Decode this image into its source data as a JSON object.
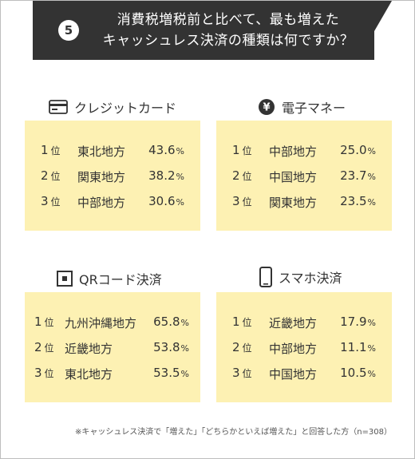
{
  "header": {
    "question_number": "5",
    "title_line1": "消費税増税前と比べて、最も増えた",
    "title_line2": "キャッシュレス決済の種類は何ですか？"
  },
  "rank_unit": "位",
  "pct_unit": "%",
  "sections": {
    "credit": {
      "title": "クレジットカード",
      "icon": "credit-card-icon",
      "rows": [
        {
          "rank": "1",
          "region": "東北地方",
          "value": "43.6"
        },
        {
          "rank": "2",
          "region": "関東地方",
          "value": "38.2"
        },
        {
          "rank": "3",
          "region": "中部地方",
          "value": "30.6"
        }
      ]
    },
    "emoney": {
      "title": "電子マネー",
      "icon": "yen-coin-icon",
      "icon_glyph": "¥",
      "rows": [
        {
          "rank": "1",
          "region": "中部地方",
          "value": "25.0"
        },
        {
          "rank": "2",
          "region": "中国地方",
          "value": "23.7"
        },
        {
          "rank": "3",
          "region": "関東地方",
          "value": "23.5"
        }
      ]
    },
    "qr": {
      "title": "QRコード決済",
      "icon": "qr-code-icon",
      "rows": [
        {
          "rank": "1",
          "region": "九州沖縄地方",
          "value": "65.8"
        },
        {
          "rank": "2",
          "region": "近畿地方",
          "value": "53.8"
        },
        {
          "rank": "3",
          "region": "東北地方",
          "value": "53.5"
        }
      ]
    },
    "smartphone": {
      "title": "スマホ決済",
      "icon": "smartphone-icon",
      "rows": [
        {
          "rank": "1",
          "region": "近畿地方",
          "value": "17.9"
        },
        {
          "rank": "2",
          "region": "中部地方",
          "value": "11.1"
        },
        {
          "rank": "3",
          "region": "中国地方",
          "value": "10.5"
        }
      ]
    }
  },
  "footnote": "※キャッシュレス決済で「増えた」「どちらかといえば増えた」と回答した方（n=308）",
  "colors": {
    "header_bg": "#333333",
    "panel_bg": "#fdf1b3"
  }
}
